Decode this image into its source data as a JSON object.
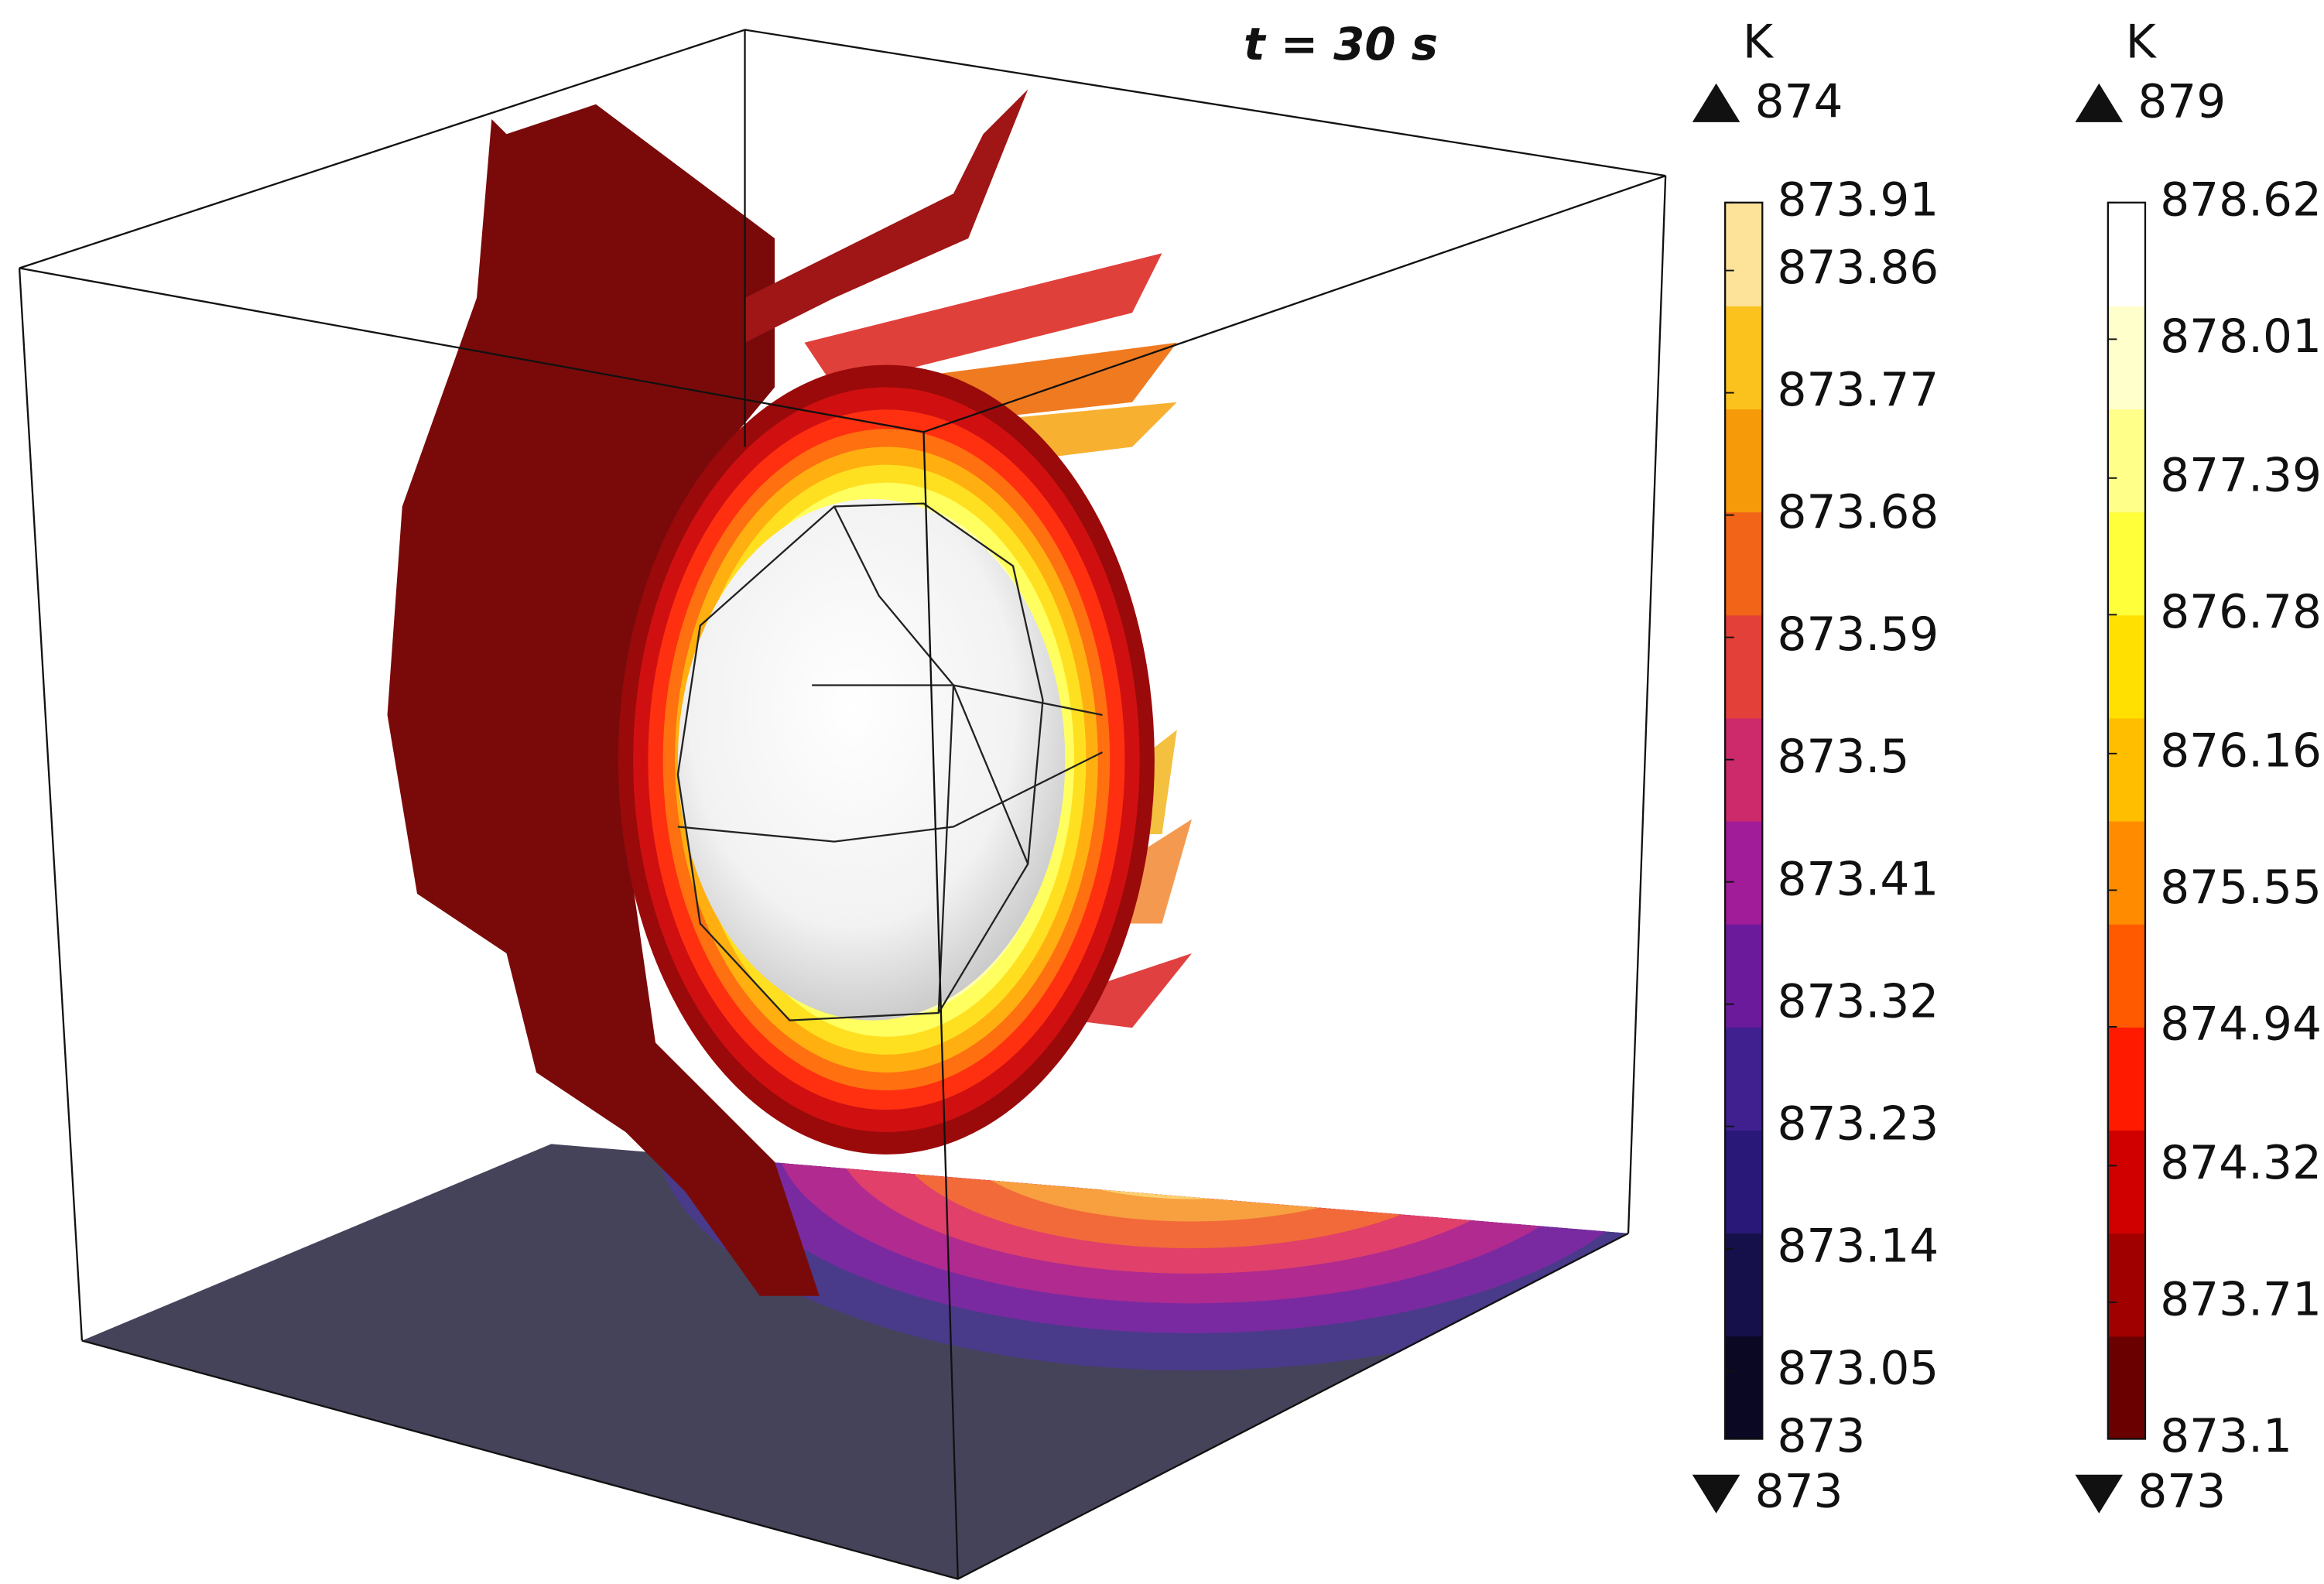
{
  "title": "t = 30 s",
  "legends": [
    {
      "unit": "K",
      "max": 874,
      "min": 873,
      "range": [
        873,
        873.91
      ],
      "ticks": [
        873.91,
        873.86,
        873.77,
        873.68,
        873.59,
        873.5,
        873.41,
        873.32,
        873.23,
        873.14,
        873.05,
        873
      ],
      "colors": [
        "#0a0822",
        "#15104a",
        "#2a1878",
        "#40208f",
        "#6c1a9c",
        "#a01c98",
        "#cc2a6a",
        "#e4403a",
        "#f26418",
        "#f79a0a",
        "#fbc21e",
        "#fde39a"
      ]
    },
    {
      "unit": "K",
      "max": 879,
      "min": 873,
      "range": [
        873.1,
        878.62
      ],
      "ticks": [
        878.62,
        878.01,
        877.39,
        876.78,
        876.16,
        875.55,
        874.94,
        874.32,
        873.71,
        873.1
      ],
      "colors": [
        "#6b0000",
        "#a00000",
        "#d00000",
        "#ff1a00",
        "#ff5a00",
        "#ff8c00",
        "#ffbe00",
        "#ffe000",
        "#ffff3a",
        "#ffff8a",
        "#ffffcc",
        "#ffffff"
      ]
    }
  ]
}
